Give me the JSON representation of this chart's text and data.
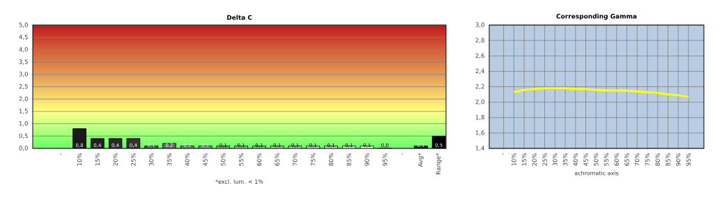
{
  "chart_data": [
    {
      "type": "bar",
      "title": "Delta C",
      "xlabel": "*excl. lum. < 1%",
      "categories": [
        "-",
        "10%",
        "15%",
        "20%",
        "25%",
        "30%",
        "35%",
        "40%",
        "45%",
        "50%",
        "55%",
        "60%",
        "65%",
        "70%",
        "75%",
        "80%",
        "85%",
        "90%",
        "95%",
        "-",
        "Avg*",
        "Range*"
      ],
      "values": [
        null,
        0.8,
        0.4,
        0.4,
        0.4,
        0.1,
        0.2,
        0.1,
        0.1,
        0.1,
        0.1,
        0.1,
        0.1,
        0.1,
        0.1,
        0.1,
        0.1,
        0.1,
        0.0,
        null,
        0.1,
        0.5
      ],
      "value_labels": [
        null,
        "0,8",
        "0,4",
        "0,4",
        "0,4",
        "0,1",
        "0,2",
        "0,1",
        "0,1",
        "0,1",
        "0,1",
        "0,1",
        "0,1",
        "0,1",
        "0,1",
        "0,1",
        "0,1",
        "0,1",
        "0,0",
        null,
        "0,1",
        "0,5"
      ],
      "colors": [
        null,
        "#1a1a1a",
        "#222222",
        "#2a2a2a",
        "#333333",
        "#555555",
        "#666666",
        "#777777",
        "#888888",
        "#999999",
        "#aaaaaa",
        "#aaaaaa",
        "#bbbbbb",
        "#bbbbbb",
        "#cccccc",
        "#cccccc",
        "#dddddd",
        "#eeeeee",
        "#f5f5f5",
        null,
        "#111111",
        "#000000"
      ],
      "ylim": [
        0,
        5
      ],
      "yticks": [
        {
          "value": 0,
          "label": "0,0"
        },
        {
          "value": 0.5,
          "label": "0,5"
        },
        {
          "value": 1,
          "label": "1,0"
        },
        {
          "value": 1.5,
          "label": "1,5"
        },
        {
          "value": 2,
          "label": "2,0"
        },
        {
          "value": 2.5,
          "label": "2,5"
        },
        {
          "value": 3,
          "label": "3,0"
        },
        {
          "value": 3.5,
          "label": "3,5"
        },
        {
          "value": 4,
          "label": "4,0"
        },
        {
          "value": 4.5,
          "label": "4,5"
        },
        {
          "value": 5,
          "label": "5,0"
        }
      ],
      "grid": "y"
    },
    {
      "type": "line",
      "title": "Corresponding Gamma",
      "xlabel": "achromatic axis",
      "categories": [
        "-",
        "10%",
        "15%",
        "20%",
        "25%",
        "30%",
        "35%",
        "40%",
        "45%",
        "50%",
        "55%",
        "60%",
        "65%",
        "70%",
        "75%",
        "80%",
        "85%",
        "90%",
        "95%"
      ],
      "values": [
        null,
        2.13,
        2.16,
        2.17,
        2.18,
        2.18,
        2.18,
        2.17,
        2.17,
        2.16,
        2.15,
        2.15,
        2.15,
        2.14,
        2.13,
        2.12,
        2.1,
        2.09,
        2.07
      ],
      "color": "#ffff00",
      "ylim": [
        1.4,
        3.0
      ],
      "yticks": [
        {
          "value": 1.4,
          "label": "1,4"
        },
        {
          "value": 1.6,
          "label": "1,6"
        },
        {
          "value": 1.8,
          "label": "1,8"
        },
        {
          "value": 2.0,
          "label": "2,0"
        },
        {
          "value": 2.2,
          "label": "2,2"
        },
        {
          "value": 2.4,
          "label": "2,4"
        },
        {
          "value": 2.6,
          "label": "2,6"
        },
        {
          "value": 2.8,
          "label": "2,8"
        },
        {
          "value": 3.0,
          "label": "3,0"
        }
      ],
      "grid": true
    }
  ]
}
